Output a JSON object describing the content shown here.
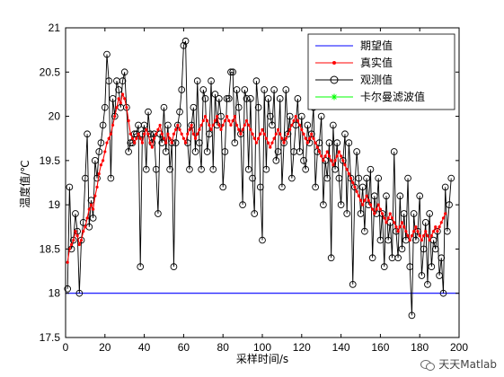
{
  "chart_data": {
    "type": "line",
    "xlabel": "采样时间/s",
    "ylabel": "温度值/℃",
    "xlim": [
      0,
      200
    ],
    "ylim": [
      17.5,
      21
    ],
    "xticks": [
      0,
      20,
      40,
      60,
      80,
      100,
      120,
      140,
      160,
      180,
      200
    ],
    "yticks": [
      17.5,
      18,
      18.5,
      19,
      19.5,
      20,
      20.5,
      21
    ],
    "grid": false,
    "legend_position": "top-right",
    "series": [
      {
        "name": "期望值",
        "color": "#0000ff",
        "marker": "none",
        "x": [
          0,
          200
        ],
        "y": [
          18,
          18
        ]
      },
      {
        "name": "真实值",
        "color": "#ff0000",
        "marker": "dot",
        "x": [],
        "y": []
      },
      {
        "name": "观测值",
        "color": "#000000",
        "marker": "circle",
        "x": [],
        "y": []
      },
      {
        "name": "卡尔曼滤波值",
        "color": "#00ff00",
        "marker": "star",
        "x": [],
        "y": []
      }
    ],
    "series_values": {
      "真实值": [
        18.35,
        18.5,
        18.55,
        18.6,
        18.7,
        18.65,
        18.55,
        18.6,
        18.7,
        18.75,
        18.85,
        18.95,
        19.0,
        18.95,
        19.1,
        19.2,
        19.35,
        19.45,
        19.5,
        19.6,
        19.7,
        19.75,
        19.8,
        19.9,
        20.0,
        20.1,
        20.2,
        20.15,
        20.25,
        20.2,
        20.1,
        19.95,
        19.8,
        19.75,
        19.7,
        19.75,
        19.8,
        19.75,
        19.7,
        19.8,
        19.85,
        19.8,
        19.7,
        19.65,
        19.75,
        19.8,
        19.85,
        19.9,
        19.8,
        19.75,
        19.7,
        19.8,
        19.75,
        19.7,
        19.8,
        19.85,
        19.9,
        19.85,
        19.8,
        19.75,
        19.7,
        19.8,
        19.85,
        19.9,
        19.8,
        19.75,
        19.8,
        19.85,
        19.9,
        19.95,
        20.0,
        19.95,
        19.9,
        19.85,
        19.9,
        19.95,
        20.0,
        19.9,
        19.85,
        19.9,
        19.95,
        20.0,
        19.95,
        19.9,
        19.95,
        20.0,
        19.9,
        19.85,
        19.8,
        19.85,
        19.9,
        19.95,
        19.9,
        19.85,
        19.8,
        19.75,
        19.7,
        19.75,
        19.8,
        19.85,
        19.8,
        19.75,
        19.7,
        19.65,
        19.7,
        19.75,
        19.8,
        19.85,
        19.8,
        19.75,
        19.7,
        19.75,
        19.8,
        19.85,
        19.9,
        19.95,
        20.0,
        19.95,
        19.9,
        19.85,
        19.8,
        19.75,
        19.7,
        19.75,
        19.8,
        19.75,
        19.7,
        19.65,
        19.6,
        19.55,
        19.5,
        19.55,
        19.6,
        19.55,
        19.5,
        19.45,
        19.5,
        19.55,
        19.6,
        19.55,
        19.5,
        19.45,
        19.4,
        19.35,
        19.3,
        19.25,
        19.2,
        19.15,
        19.1,
        19.05,
        19.0,
        19.05,
        19.1,
        19.05,
        19.0,
        18.95,
        18.9,
        18.95,
        19.0,
        18.95,
        18.9,
        18.85,
        18.8,
        18.85,
        18.9,
        18.85,
        18.8,
        18.75,
        18.7,
        18.75,
        18.8,
        18.75,
        18.7,
        18.65,
        18.6,
        18.65,
        18.7,
        18.75,
        18.7,
        18.65,
        18.6,
        18.65,
        18.7,
        18.65,
        18.6,
        18.65,
        18.7,
        18.75,
        18.7,
        18.75,
        18.8,
        18.85,
        18.9
      ],
      "观测值": [
        18.05,
        19.2,
        18.5,
        18.6,
        18.9,
        18.7,
        18.0,
        18.6,
        18.8,
        19.3,
        19.8,
        18.75,
        19.05,
        18.85,
        19.5,
        19.3,
        19.6,
        19.7,
        19.9,
        20.1,
        20.7,
        20.4,
        19.3,
        20.2,
        20.0,
        20.4,
        20.3,
        20.1,
        20.4,
        20.5,
        20.1,
        19.6,
        19.7,
        19.7,
        19.8,
        19.8,
        19.9,
        18.3,
        19.8,
        19.9,
        19.4,
        20.05,
        19.8,
        19.7,
        19.8,
        19.4,
        18.9,
        19.8,
        19.7,
        20.1,
        19.6,
        19.9,
        19.4,
        19.7,
        18.3,
        19.7,
        19.9,
        20.05,
        20.3,
        20.8,
        20.85,
        19.7,
        19.4,
        19.9,
        20.1,
        19.6,
        20.4,
        19.7,
        19.4,
        20.3,
        20.2,
        19.6,
        19.8,
        20.4,
        19.4,
        20.25,
        19.9,
        20.2,
        20.0,
        19.2,
        19.6,
        20.2,
        20.2,
        20.5,
        20.5,
        19.7,
        20.3,
        20.1,
        19.8,
        19.0,
        20.3,
        20.2,
        19.4,
        20.2,
        19.3,
        18.9,
        20.4,
        20.1,
        19.2,
        18.6,
        20.3,
        19.4,
        20.2,
        20.0,
        19.9,
        20.3,
        19.5,
        19.6,
        20.2,
        19.2,
        19.7,
        20.3,
        19.8,
        20.0,
        19.3,
        19.6,
        19.9,
        20.2,
        19.6,
        20.0,
        19.5,
        19.4,
        19.9,
        19.7,
        19.8,
        20.1,
        19.2,
        19.6,
        19.7,
        20.0,
        19.0,
        19.5,
        19.3,
        19.7,
        18.4,
        19.9,
        19.4,
        19.7,
        19.3,
        19.0,
        19.5,
        19.8,
        18.9,
        19.7,
        19.3,
        18.1,
        19.2,
        19.6,
        19.3,
        18.9,
        19.2,
        18.7,
        19.3,
        19.0,
        19.4,
        18.4,
        19.1,
        18.9,
        19.3,
        18.6,
        18.9,
        18.3,
        19.1,
        18.6,
        18.8,
        18.4,
        19.6,
        18.7,
        18.4,
        19.1,
        18.5,
        18.9,
        18.6,
        19.3,
        18.3,
        17.75,
        18.9,
        18.6,
        18.7,
        19.1,
        18.2,
        18.5,
        18.8,
        18.1,
        18.9,
        18.3,
        18.6,
        18.5,
        18.7,
        18.2,
        18.4,
        18.0,
        19.2,
        18.7,
        19.0,
        19.3
      ]
    }
  },
  "watermark": {
    "text": "天天Matlab",
    "icon": "wechat-icon"
  }
}
